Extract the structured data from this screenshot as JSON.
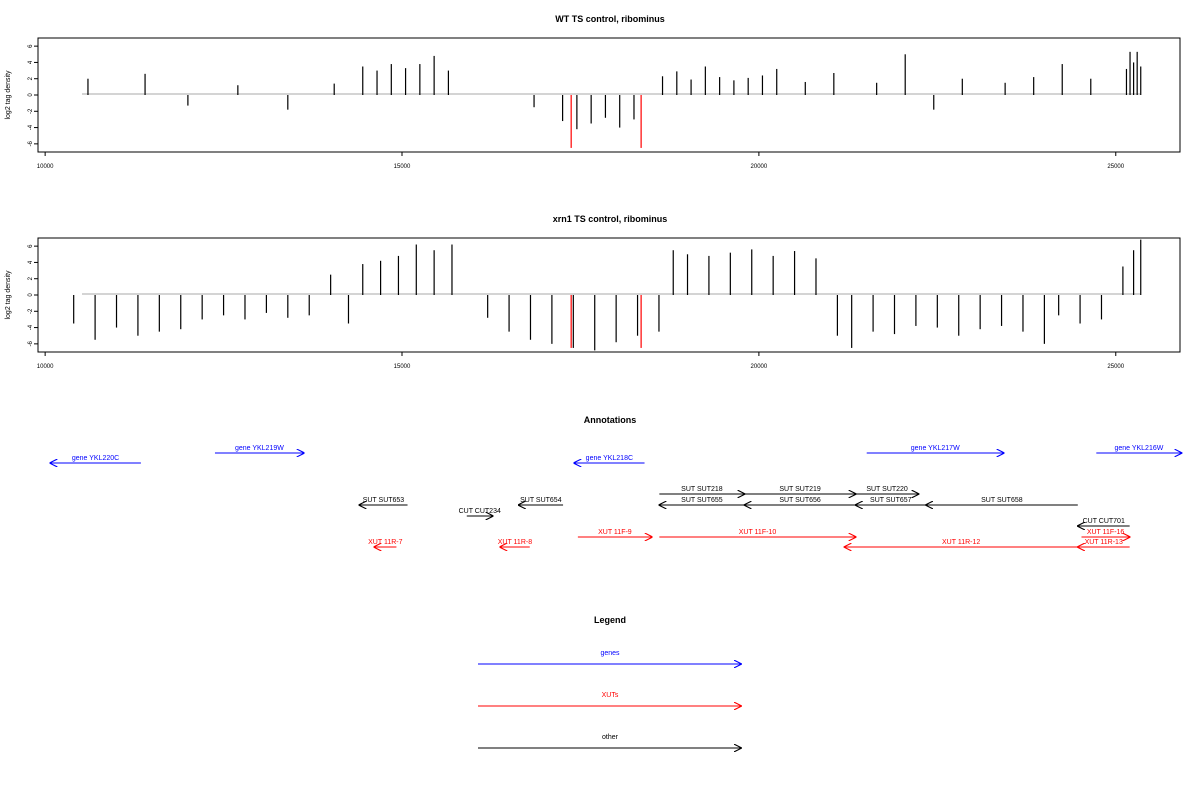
{
  "colors": {
    "gene": "#0000ff",
    "xut": "#ff0000",
    "other": "#000000",
    "highlight": "#ff0000",
    "axis": "#000000",
    "zero_line": "#a9a9a9"
  },
  "chart_data": [
    {
      "type": "bar",
      "title": "WT TS control, ribominus",
      "ylabel": "log2 tag density",
      "xlim": [
        9900,
        25900
      ],
      "ylim": [
        -7,
        7
      ],
      "yticks": [
        -6,
        -4,
        -2,
        0,
        2,
        4,
        6
      ],
      "xticks": [
        10000,
        15000,
        20000,
        25000
      ],
      "highlight_x": [
        17370,
        18350
      ],
      "grid": false,
      "series": [
        {
          "x": [
            10600,
            11400,
            12000,
            12700,
            13400,
            14050,
            14450,
            14650,
            14850,
            15050,
            15250,
            15450,
            15650,
            16850,
            17250,
            17450,
            17650,
            17850,
            18050,
            18250,
            18650,
            18850,
            19050,
            19250,
            19450,
            19650,
            19850,
            20050,
            20250,
            20650,
            21050,
            21650,
            22050,
            22450,
            22850,
            23450,
            23850,
            24250,
            24650,
            25150,
            25200,
            25250,
            25300,
            25350
          ],
          "values": [
            2.0,
            2.6,
            -1.3,
            1.2,
            -1.8,
            1.4,
            3.5,
            3.0,
            3.8,
            3.3,
            3.8,
            4.8,
            3.0,
            -1.5,
            -3.2,
            -4.2,
            -3.5,
            -2.8,
            -4.0,
            -3.0,
            2.3,
            2.9,
            1.9,
            3.5,
            2.2,
            1.8,
            2.1,
            2.4,
            3.2,
            1.6,
            2.7,
            1.5,
            5.0,
            -1.8,
            2.0,
            1.5,
            2.2,
            3.8,
            2.0,
            3.2,
            5.3,
            4.0,
            5.3,
            3.5
          ]
        }
      ]
    },
    {
      "type": "bar",
      "title": "xrn1 TS control, ribominus",
      "ylabel": "log2 tag density",
      "xlim": [
        9900,
        25900
      ],
      "ylim": [
        -7,
        7
      ],
      "yticks": [
        -6,
        -4,
        -2,
        0,
        2,
        4,
        6
      ],
      "xticks": [
        10000,
        15000,
        20000,
        25000
      ],
      "highlight_x": [
        17370,
        18350
      ],
      "grid": false,
      "series": [
        {
          "x": [
            10400,
            10700,
            11000,
            11300,
            11600,
            11900,
            12200,
            12500,
            12800,
            13100,
            13400,
            13700,
            14000,
            14250,
            14450,
            14700,
            14950,
            15200,
            15450,
            15700,
            16200,
            16500,
            16800,
            17100,
            17400,
            17700,
            18000,
            18300,
            18600,
            18800,
            19000,
            19300,
            19600,
            19900,
            20200,
            20500,
            20800,
            21100,
            21300,
            21600,
            21900,
            22200,
            22500,
            22800,
            23100,
            23400,
            23700,
            24000,
            24200,
            24500,
            24800,
            25100,
            25250,
            25350
          ],
          "values": [
            -3.5,
            -5.5,
            -4.0,
            -5.0,
            -4.5,
            -4.2,
            -3.0,
            -2.5,
            -3.0,
            -2.2,
            -2.8,
            -2.5,
            2.5,
            -3.5,
            3.8,
            4.2,
            4.8,
            6.2,
            5.5,
            6.2,
            -2.8,
            -4.5,
            -5.5,
            -6.0,
            -6.5,
            -6.8,
            -5.8,
            -5.0,
            -4.5,
            5.5,
            5.0,
            4.8,
            5.2,
            5.6,
            4.8,
            5.4,
            4.5,
            -5.0,
            -6.5,
            -4.5,
            -4.8,
            -3.8,
            -4.0,
            -5.0,
            -4.2,
            -3.8,
            -4.5,
            -6.0,
            -2.5,
            -3.5,
            -3.0,
            3.5,
            5.5,
            6.8
          ]
        }
      ]
    }
  ],
  "annotations": {
    "title": "Annotations",
    "features": [
      {
        "label": "gene YKL220C",
        "kind": "gene",
        "strand": "-",
        "start": 9950,
        "end": 12400,
        "row": 1
      },
      {
        "label": "gene YKL219W",
        "kind": "gene",
        "strand": "+",
        "start": 14400,
        "end": 16800,
        "row": 0
      },
      {
        "label": "gene YKL218C",
        "kind": "gene",
        "strand": "-",
        "start": 24100,
        "end": 26000,
        "row": 1
      },
      {
        "label": "gene YKL217W",
        "kind": "gene",
        "strand": "+",
        "start": 32000,
        "end": 35700,
        "row": 0
      },
      {
        "label": "gene YKL216W",
        "kind": "gene",
        "strand": "+",
        "start": 38200,
        "end": 40500,
        "row": 0
      },
      {
        "label": "SUT SUT218",
        "kind": "other",
        "strand": "+",
        "start": 26400,
        "end": 28700,
        "row": 2
      },
      {
        "label": "SUT SUT219",
        "kind": "other",
        "strand": "+",
        "start": 28700,
        "end": 31700,
        "row": 2
      },
      {
        "label": "SUT SUT220",
        "kind": "other",
        "strand": "+",
        "start": 31700,
        "end": 33400,
        "row": 2
      },
      {
        "label": "SUT SUT655",
        "kind": "other",
        "strand": "-",
        "start": 26400,
        "end": 28700,
        "row": 3
      },
      {
        "label": "SUT SUT656",
        "kind": "other",
        "strand": "-",
        "start": 28700,
        "end": 31700,
        "row": 3
      },
      {
        "label": "SUT SUT657",
        "kind": "other",
        "strand": "-",
        "start": 31700,
        "end": 33600,
        "row": 3
      },
      {
        "label": "SUT SUT658",
        "kind": "other",
        "strand": "-",
        "start": 33600,
        "end": 37700,
        "row": 3
      },
      {
        "label": "SUT SUT653",
        "kind": "other",
        "strand": "-",
        "start": 18300,
        "end": 19600,
        "row": 3
      },
      {
        "label": "SUT SUT654",
        "kind": "other",
        "strand": "-",
        "start": 22600,
        "end": 23800,
        "row": 3
      },
      {
        "label": "CUT CUT234",
        "kind": "other",
        "strand": "+",
        "start": 21200,
        "end": 21900,
        "row": 4
      },
      {
        "label": "CUT CUT701",
        "kind": "other",
        "strand": "-",
        "start": 37700,
        "end": 39100,
        "row": 5
      },
      {
        "label": "XUT 11F-9",
        "kind": "xut",
        "strand": "+",
        "start": 24200,
        "end": 26200,
        "row": 6
      },
      {
        "label": "XUT 11F-10",
        "kind": "xut",
        "strand": "+",
        "start": 26400,
        "end": 31700,
        "row": 6
      },
      {
        "label": "XUT 11F-16",
        "kind": "xut",
        "strand": "+",
        "start": 37800,
        "end": 39100,
        "row": 6
      },
      {
        "label": "XUT 11R-7",
        "kind": "xut",
        "strand": "-",
        "start": 18700,
        "end": 19300,
        "row": 7
      },
      {
        "label": "XUT 11R-8",
        "kind": "xut",
        "strand": "-",
        "start": 22100,
        "end": 22900,
        "row": 7
      },
      {
        "label": "XUT 11R-12",
        "kind": "xut",
        "strand": "-",
        "start": 31400,
        "end": 37700,
        "row": 7
      },
      {
        "label": "XUT 11R-13",
        "kind": "xut",
        "strand": "-",
        "start": 37700,
        "end": 39100,
        "row": 7
      }
    ]
  },
  "legend": {
    "title": "Legend",
    "items": [
      {
        "label": "genes",
        "kind": "gene"
      },
      {
        "label": "XUTs",
        "kind": "xut"
      },
      {
        "label": "other",
        "kind": "other"
      }
    ]
  }
}
